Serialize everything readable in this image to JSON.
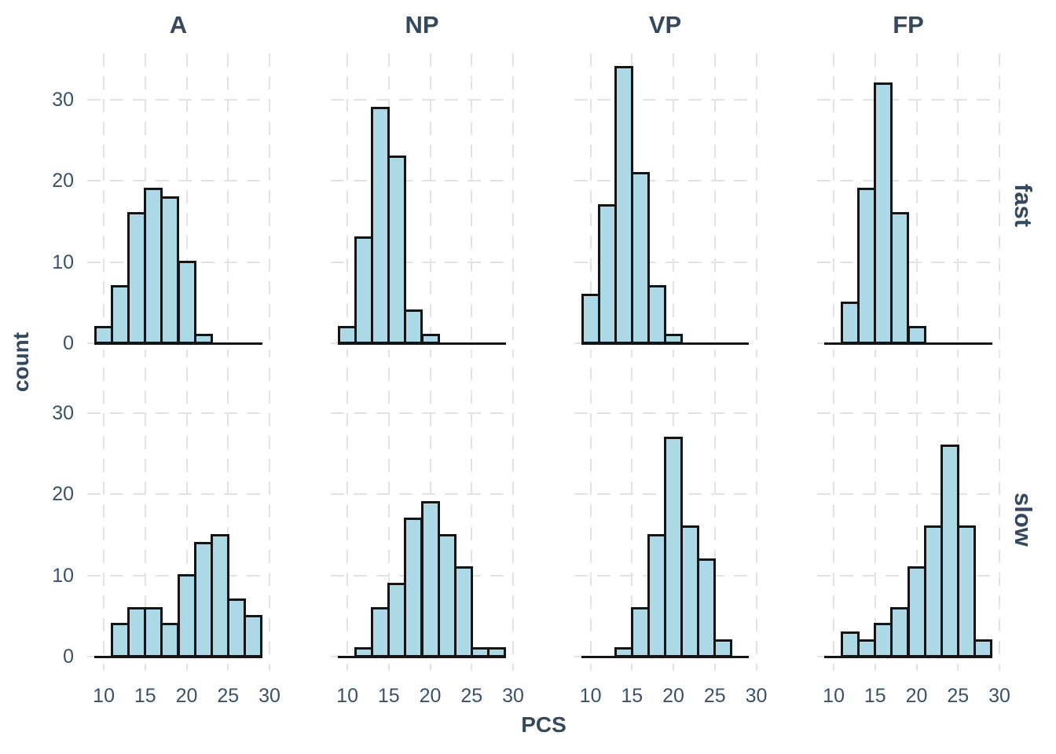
{
  "figure": {
    "xlabel": "PCS",
    "ylabel": "count",
    "column_facets": [
      "A",
      "NP",
      "VP",
      "FP"
    ],
    "row_facets": [
      "fast",
      "slow"
    ],
    "x_tick_labels": [
      "10",
      "15",
      "20",
      "25",
      "30"
    ],
    "y_tick_labels": [
      "30",
      "20",
      "10",
      "0"
    ]
  },
  "chart_data": {
    "type": "bar",
    "subtype": "faceted-histogram",
    "title": "",
    "xlabel": "PCS",
    "ylabel": "count",
    "facet_columns": [
      "A",
      "NP",
      "VP",
      "FP"
    ],
    "facet_rows": [
      "fast",
      "slow"
    ],
    "bin_width": 2,
    "bin_centers": [
      10,
      12,
      14,
      16,
      18,
      20,
      22,
      24,
      26,
      28
    ],
    "bin_range": [
      9,
      29
    ],
    "panels": [
      {
        "row": "fast",
        "col": "A",
        "counts": [
          2,
          7,
          16,
          19,
          18,
          10,
          1,
          0,
          0,
          0
        ]
      },
      {
        "row": "fast",
        "col": "NP",
        "counts": [
          2,
          13,
          29,
          23,
          4,
          1,
          0,
          0,
          0,
          0
        ]
      },
      {
        "row": "fast",
        "col": "VP",
        "counts": [
          6,
          17,
          34,
          21,
          7,
          1,
          0,
          0,
          0,
          0
        ]
      },
      {
        "row": "fast",
        "col": "FP",
        "counts": [
          0,
          5,
          19,
          32,
          16,
          2,
          0,
          0,
          0,
          0
        ]
      },
      {
        "row": "slow",
        "col": "A",
        "counts": [
          0,
          4,
          6,
          6,
          4,
          10,
          14,
          15,
          7,
          5
        ]
      },
      {
        "row": "slow",
        "col": "NP",
        "counts": [
          0,
          1,
          6,
          9,
          17,
          19,
          15,
          11,
          1,
          1
        ]
      },
      {
        "row": "slow",
        "col": "VP",
        "counts": [
          0,
          0,
          1,
          6,
          15,
          27,
          16,
          12,
          2,
          0
        ]
      },
      {
        "row": "slow",
        "col": "FP",
        "counts": [
          0,
          3,
          2,
          4,
          6,
          11,
          16,
          26,
          16,
          2
        ]
      }
    ],
    "x_ticks": [
      10,
      15,
      20,
      25,
      30
    ],
    "y_ticks": [
      0,
      10,
      20,
      30
    ],
    "xlim": [
      8,
      30
    ],
    "ylim": [
      0,
      35.7
    ],
    "grid": "dashed light-gray major gridlines, no panel border",
    "legend": "none"
  },
  "style": {
    "bar_fill": "#ADD8E6",
    "bar_stroke": "#141414",
    "grid_color": "#E3E3E3",
    "text_color": "#35495E",
    "background": "#FFFFFF"
  }
}
